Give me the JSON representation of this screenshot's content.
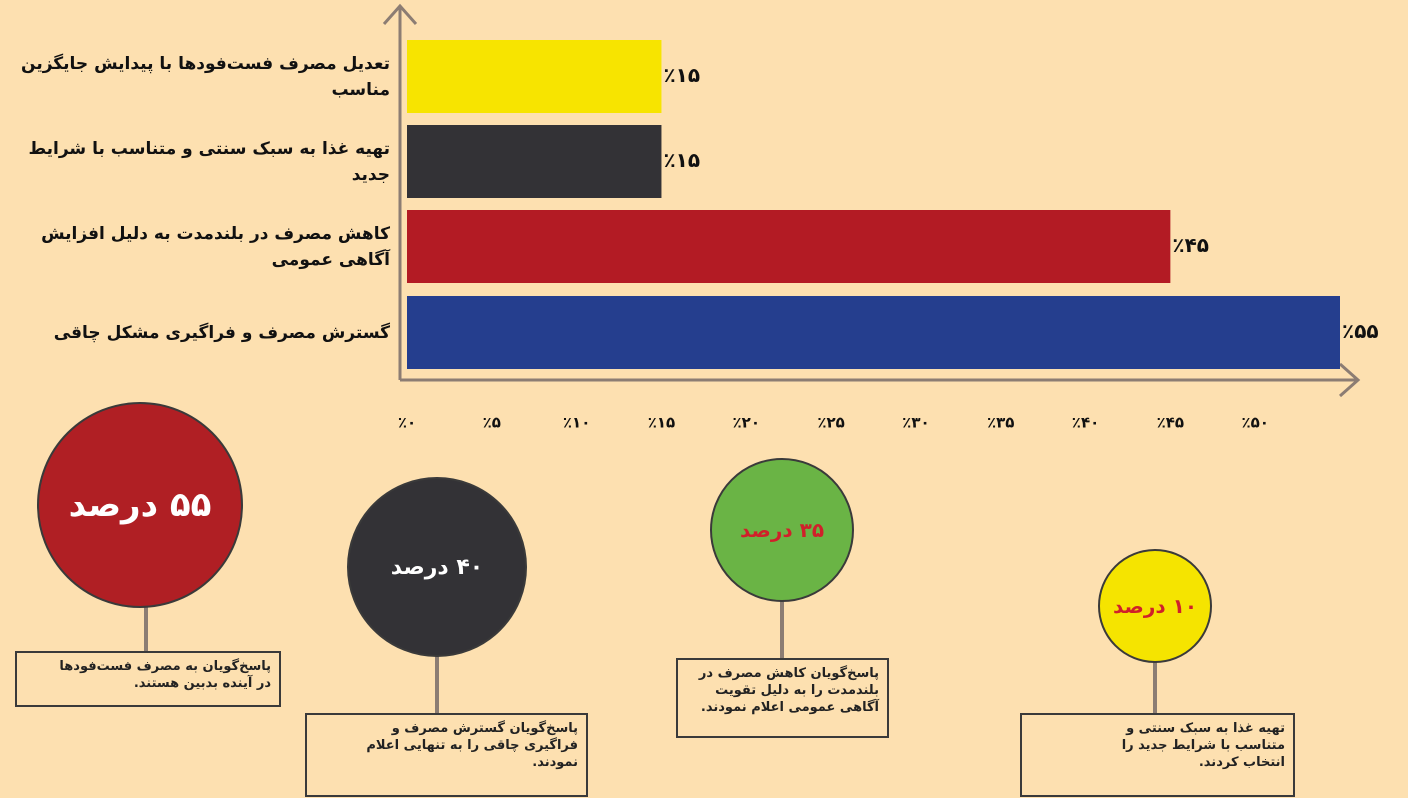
{
  "chart_data": {
    "type": "barh",
    "categories": [
      "تعدیل مصرف فست‌فودها با پیدایش جایگزین مناسب",
      "تهیه غذا به سبک سنتی و متناسب با شرایط جدید",
      "کاهش مصرف در بلندمدت به دلیل افزایش آگاهی عمومی",
      "گسترش مصرف و فراگیری مشکل چاقی"
    ],
    "values": [
      15,
      15,
      45,
      55
    ],
    "value_labels": [
      "٪۱۵",
      "٪۱۵",
      "٪۴۵",
      "٪۵۵"
    ],
    "colors": [
      "#f7e400",
      "#333236",
      "#b31b24",
      "#253e8e"
    ],
    "xlim": [
      0,
      55
    ],
    "xticks": [
      {
        "value": 0,
        "label": "٪۰"
      },
      {
        "value": 5,
        "label": "٪۵"
      },
      {
        "value": 10,
        "label": "٪۱۰"
      },
      {
        "value": 15,
        "label": "٪۱۵"
      },
      {
        "value": 20,
        "label": "٪۲۰"
      },
      {
        "value": 25,
        "label": "٪۲۵"
      },
      {
        "value": 30,
        "label": "٪۳۰"
      },
      {
        "value": 35,
        "label": "٪۳۵"
      },
      {
        "value": 40,
        "label": "٪۴۰"
      },
      {
        "value": 45,
        "label": "٪۴۵"
      },
      {
        "value": 50,
        "label": "٪۵۰"
      }
    ]
  },
  "callouts": [
    {
      "label": "۵۵ درصد",
      "color": "#b01f24",
      "text_color": "#ffffff",
      "caption": [
        "پاسخ‌گویان به مصرف فست‌فودها",
        "در آینده بدبین هستند."
      ]
    },
    {
      "label": "۴۰ درصد",
      "color": "#333236",
      "text_color": "#ffffff",
      "caption": [
        "پاسخ‌گویان گسترش مصرف و",
        "فراگیری چاقی را به تنهایی اعلام",
        "نمودند."
      ]
    },
    {
      "label": "۳۵ درصد",
      "color": "#6ab445",
      "text_color": "#d0202a",
      "caption": [
        "پاسخ‌گویان کاهش مصرف در",
        "بلندمدت را به دلیل تقویت",
        "آگاهی عمومی اعلام نمودند."
      ]
    },
    {
      "label": "۱۰ درصد",
      "color": "#f5e400",
      "text_color": "#d0202a",
      "caption": [
        "تهیه غذا به سبک سنتی و",
        "متناسب با شرایط جدید را",
        "انتخاب کردند."
      ]
    }
  ]
}
